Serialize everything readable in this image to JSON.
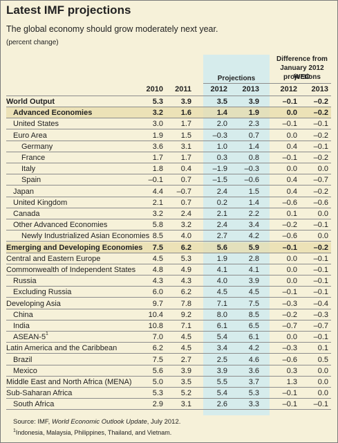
{
  "title": "Latest IMF projections",
  "subtitle": "The global economy should grow moderately next year.",
  "unit": "(percent change)",
  "headers": {
    "projections": "Projections",
    "difference_line1": "Difference from",
    "difference_line2": "January 2012 WEO",
    "difference_line3": "projections",
    "years": [
      "2010",
      "2011",
      "2012",
      "2013",
      "2012",
      "2013"
    ]
  },
  "rows": [
    {
      "label": "World Output",
      "values": [
        "5.3",
        "3.9",
        "3.5",
        "3.9",
        "–0.1",
        "–0.2"
      ],
      "bold": true,
      "indent": 0
    },
    {
      "label": "Advanced Economies",
      "values": [
        "3.2",
        "1.6",
        "1.4",
        "1.9",
        "0.0",
        "–0.2"
      ],
      "bold": true,
      "indent": 1
    },
    {
      "label": "United States",
      "values": [
        "3.0",
        "1.7",
        "2.0",
        "2.3",
        "–0.1",
        "–0.1"
      ],
      "indent": 1
    },
    {
      "label": "Euro Area",
      "values": [
        "1.9",
        "1.5",
        "–0.3",
        "0.7",
        "0.0",
        "–0.2"
      ],
      "indent": 1
    },
    {
      "label": "Germany",
      "values": [
        "3.6",
        "3.1",
        "1.0",
        "1.4",
        "0.4",
        "–0.1"
      ],
      "indent": 2
    },
    {
      "label": "France",
      "values": [
        "1.7",
        "1.7",
        "0.3",
        "0.8",
        "–0.1",
        "–0.2"
      ],
      "indent": 2
    },
    {
      "label": "Italy",
      "values": [
        "1.8",
        "0.4",
        "–1.9",
        "–0.3",
        "0.0",
        "0.0"
      ],
      "indent": 2
    },
    {
      "label": "Spain",
      "values": [
        "–0.1",
        "0.7",
        "–1.5",
        "–0.6",
        "0.4",
        "–0.7"
      ],
      "indent": 2
    },
    {
      "label": "Japan",
      "values": [
        "4.4",
        "–0.7",
        "2.4",
        "1.5",
        "0.4",
        "–0.2"
      ],
      "indent": 1
    },
    {
      "label": "United Kingdom",
      "values": [
        "2.1",
        "0.7",
        "0.2",
        "1.4",
        "–0.6",
        "–0.6"
      ],
      "indent": 1
    },
    {
      "label": "Canada",
      "values": [
        "3.2",
        "2.4",
        "2.1",
        "2.2",
        "0.1",
        "0.0"
      ],
      "indent": 1
    },
    {
      "label": "Other Advanced Economies",
      "values": [
        "5.8",
        "3.2",
        "2.4",
        "3.4",
        "–0.2",
        "–0.1"
      ],
      "indent": 1
    },
    {
      "label": "Newly Industrialized Asian Economies",
      "values": [
        "8.5",
        "4.0",
        "2.7",
        "4.2",
        "–0.6",
        "0.0"
      ],
      "indent": 2
    },
    {
      "label": "Emerging and Developing Economies",
      "values": [
        "7.5",
        "6.2",
        "5.6",
        "5.9",
        "–0.1",
        "–0.2"
      ],
      "bold": true,
      "indent": 0
    },
    {
      "label": "Central and Eastern Europe",
      "values": [
        "4.5",
        "5.3",
        "1.9",
        "2.8",
        "0.0",
        "–0.1"
      ],
      "indent": 0
    },
    {
      "label": "Commonwealth of Independent States",
      "values": [
        "4.8",
        "4.9",
        "4.1",
        "4.1",
        "0.0",
        "–0.1"
      ],
      "indent": 0
    },
    {
      "label": "Russia",
      "values": [
        "4.3",
        "4.3",
        "4.0",
        "3.9",
        "0.0",
        "–0.1"
      ],
      "indent": 1
    },
    {
      "label": "Excluding Russia",
      "values": [
        "6.0",
        "6.2",
        "4.5",
        "4.5",
        "–0.1",
        "–0.1"
      ],
      "indent": 1
    },
    {
      "label": "Developing Asia",
      "values": [
        "9.7",
        "7.8",
        "7.1",
        "7.5",
        "–0.3",
        "–0.4"
      ],
      "indent": 0
    },
    {
      "label": "China",
      "values": [
        "10.4",
        "9.2",
        "8.0",
        "8.5",
        "–0.2",
        "–0.3"
      ],
      "indent": 1
    },
    {
      "label": "India",
      "values": [
        "10.8",
        "7.1",
        "6.1",
        "6.5",
        "–0.7",
        "–0.7"
      ],
      "indent": 1
    },
    {
      "label": "ASEAN-5",
      "sup": "1",
      "values": [
        "7.0",
        "4.5",
        "5.4",
        "6.1",
        "0.0",
        "–0.1"
      ],
      "indent": 1
    },
    {
      "label": "Latin America and the Caribbean",
      "values": [
        "6.2",
        "4.5",
        "3.4",
        "4.2",
        "–0.3",
        "0.1"
      ],
      "indent": 0
    },
    {
      "label": "Brazil",
      "values": [
        "7.5",
        "2.7",
        "2.5",
        "4.6",
        "–0.6",
        "0.5"
      ],
      "indent": 1
    },
    {
      "label": "Mexico",
      "values": [
        "5.6",
        "3.9",
        "3.9",
        "3.6",
        "0.3",
        "0.0"
      ],
      "indent": 1
    },
    {
      "label": "Middle East and North Africa (MENA)",
      "values": [
        "5.0",
        "3.5",
        "5.5",
        "3.7",
        "1.3",
        "0.0"
      ],
      "indent": 0
    },
    {
      "label": "Sub-Saharan Africa",
      "values": [
        "5.3",
        "5.2",
        "5.4",
        "5.3",
        "–0.1",
        "0.0"
      ],
      "indent": 0
    },
    {
      "label": "South Africa",
      "values": [
        "2.9",
        "3.1",
        "2.6",
        "3.3",
        "–0.1",
        "–0.1"
      ],
      "indent": 1
    }
  ],
  "source_prefix": "Source: IMF, ",
  "source_title": "World Economic Outlook Update",
  "source_suffix": ", July 2012.",
  "footnote_mark": "1",
  "footnote": "Indonesia, Malaysia, Philippines, Thailand, and Vietnam."
}
